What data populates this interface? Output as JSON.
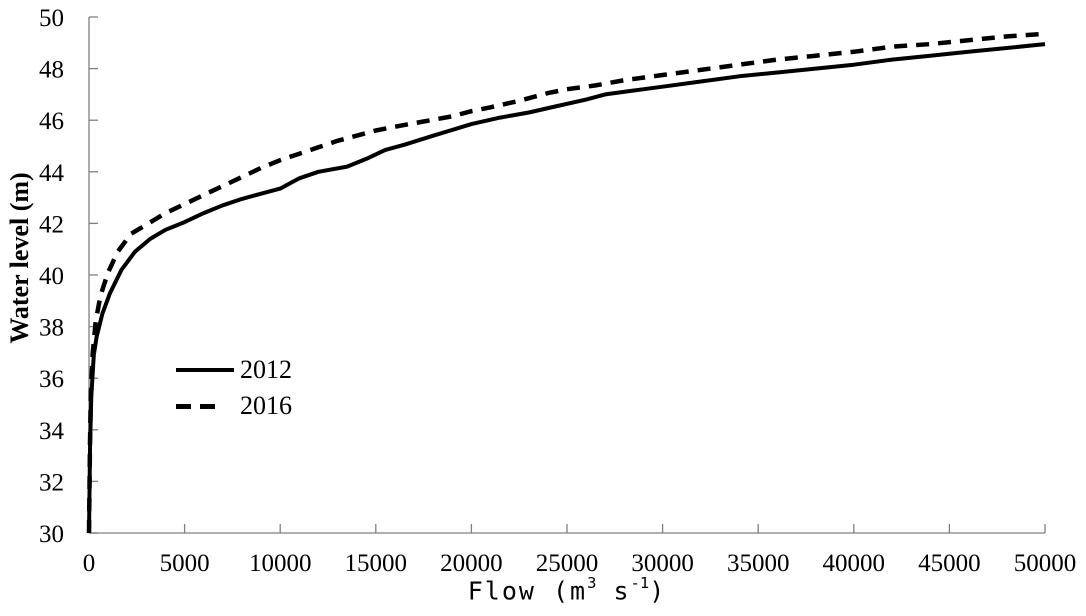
{
  "figure": {
    "background": "#ffffff"
  },
  "y_axis": {
    "title": "Water level (m)"
  },
  "x_axis": {
    "title_pre": "Flow (m",
    "title_sup1": "3",
    "title_mid": " s",
    "title_sup2": "-1",
    "title_post": ")"
  },
  "legend": {
    "items": [
      {
        "label": "2012",
        "style": "solid"
      },
      {
        "label": "2016",
        "style": "dashed"
      }
    ]
  },
  "chart_data": {
    "type": "line",
    "title": "",
    "xlabel": "Flow (m³ s⁻¹)",
    "ylabel": "Water level (m)",
    "xlim": [
      0,
      50000
    ],
    "ylim": [
      30,
      50
    ],
    "x_ticks": [
      0,
      5000,
      10000,
      15000,
      20000,
      25000,
      30000,
      35000,
      40000,
      45000,
      50000
    ],
    "y_ticks": [
      30,
      32,
      34,
      36,
      38,
      40,
      42,
      44,
      46,
      48,
      50
    ],
    "grid": false,
    "legend_position": "inside-left",
    "axis_color": "#7f7f7f",
    "line_color": "#000000",
    "series": [
      {
        "name": "2012",
        "style": "solid",
        "stroke_width": 4,
        "points": [
          [
            0,
            30
          ],
          [
            60,
            33.5
          ],
          [
            120,
            35.3
          ],
          [
            250,
            36.9
          ],
          [
            400,
            37.6
          ],
          [
            700,
            38.5
          ],
          [
            1100,
            39.3
          ],
          [
            1700,
            40.2
          ],
          [
            2400,
            40.9
          ],
          [
            3200,
            41.4
          ],
          [
            4000,
            41.75
          ],
          [
            5000,
            42.05
          ],
          [
            6000,
            42.4
          ],
          [
            7000,
            42.7
          ],
          [
            8000,
            42.95
          ],
          [
            9000,
            43.15
          ],
          [
            10000,
            43.35
          ],
          [
            11000,
            43.75
          ],
          [
            12000,
            44.0
          ],
          [
            13500,
            44.2
          ],
          [
            14500,
            44.5
          ],
          [
            15500,
            44.85
          ],
          [
            16500,
            45.05
          ],
          [
            18000,
            45.4
          ],
          [
            20000,
            45.85
          ],
          [
            21500,
            46.1
          ],
          [
            23000,
            46.3
          ],
          [
            24500,
            46.55
          ],
          [
            26000,
            46.8
          ],
          [
            27000,
            47.0
          ],
          [
            28500,
            47.15
          ],
          [
            30000,
            47.3
          ],
          [
            32000,
            47.5
          ],
          [
            34000,
            47.7
          ],
          [
            36000,
            47.85
          ],
          [
            38000,
            48.0
          ],
          [
            40000,
            48.15
          ],
          [
            42000,
            48.35
          ],
          [
            44000,
            48.5
          ],
          [
            46000,
            48.65
          ],
          [
            48000,
            48.8
          ],
          [
            50000,
            48.95
          ]
        ]
      },
      {
        "name": "2016",
        "style": "dashed",
        "stroke_width": 4.5,
        "points": [
          [
            0,
            30
          ],
          [
            50,
            33.5
          ],
          [
            100,
            35.5
          ],
          [
            200,
            37.0
          ],
          [
            350,
            38.2
          ],
          [
            600,
            39.2
          ],
          [
            1000,
            40.1
          ],
          [
            1500,
            40.9
          ],
          [
            2200,
            41.6
          ],
          [
            3000,
            41.95
          ],
          [
            4000,
            42.4
          ],
          [
            5000,
            42.75
          ],
          [
            6000,
            43.1
          ],
          [
            7000,
            43.45
          ],
          [
            8000,
            43.8
          ],
          [
            9000,
            44.15
          ],
          [
            10000,
            44.45
          ],
          [
            11000,
            44.7
          ],
          [
            12000,
            44.95
          ],
          [
            13000,
            45.2
          ],
          [
            14000,
            45.4
          ],
          [
            15000,
            45.6
          ],
          [
            16000,
            45.75
          ],
          [
            17500,
            45.95
          ],
          [
            19000,
            46.15
          ],
          [
            20000,
            46.35
          ],
          [
            21000,
            46.5
          ],
          [
            22500,
            46.75
          ],
          [
            24000,
            47.05
          ],
          [
            25000,
            47.2
          ],
          [
            26500,
            47.35
          ],
          [
            28000,
            47.55
          ],
          [
            30000,
            47.75
          ],
          [
            32000,
            47.95
          ],
          [
            34000,
            48.15
          ],
          [
            36000,
            48.35
          ],
          [
            38000,
            48.5
          ],
          [
            40000,
            48.65
          ],
          [
            42000,
            48.85
          ],
          [
            44000,
            48.95
          ],
          [
            46000,
            49.1
          ],
          [
            48000,
            49.25
          ],
          [
            50000,
            49.35
          ]
        ]
      }
    ]
  }
}
